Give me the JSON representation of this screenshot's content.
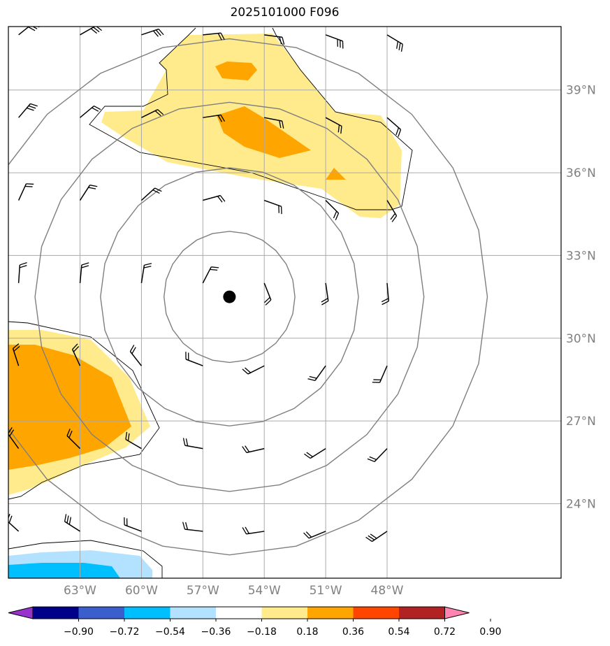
{
  "title": "2025101000 F096",
  "map": {
    "lon_range": [
      -66.5,
      -39.5
    ],
    "lat_range": [
      21.3,
      41.3
    ],
    "lat_ticks": [
      {
        "value": 24,
        "label": "24°N"
      },
      {
        "value": 27,
        "label": "27°N"
      },
      {
        "value": 30,
        "label": "30°N"
      },
      {
        "value": 33,
        "label": "33°N"
      },
      {
        "value": 36,
        "label": "36°N"
      },
      {
        "value": 39,
        "label": "39°N"
      }
    ],
    "lon_ticks": [
      {
        "value": -63,
        "label": "63°W"
      },
      {
        "value": -60,
        "label": "60°W"
      },
      {
        "value": -57,
        "label": "57°W"
      },
      {
        "value": -54,
        "label": "54°W"
      },
      {
        "value": -51,
        "label": "51°W"
      },
      {
        "value": -48,
        "label": "48°W"
      }
    ],
    "grid": true,
    "center_marker": {
      "lon": -55.7,
      "lat": 31.5
    },
    "range_rings_deg": [
      3.2,
      6.3,
      9.5,
      12.6
    ],
    "wind_barb_grid": {
      "lons": [
        -66,
        -63,
        -60,
        -57,
        -54,
        -51,
        -48
      ],
      "lats": [
        41,
        38,
        35,
        32,
        29,
        26,
        23
      ]
    }
  },
  "colorbar": {
    "ticks": [
      "−0.90",
      "−0.72",
      "−0.54",
      "−0.36",
      "−0.18",
      "0.18",
      "0.36",
      "0.54",
      "0.72",
      "0.90"
    ],
    "colors": [
      "#9932cc",
      "#00008b",
      "#3a5fcd",
      "#00bfff",
      "#b2e2ff",
      "#ffffff",
      "#ffeb8c",
      "#ffa500",
      "#ff4500",
      "#b22222",
      "#ff85b0"
    ],
    "extend": "both"
  }
}
